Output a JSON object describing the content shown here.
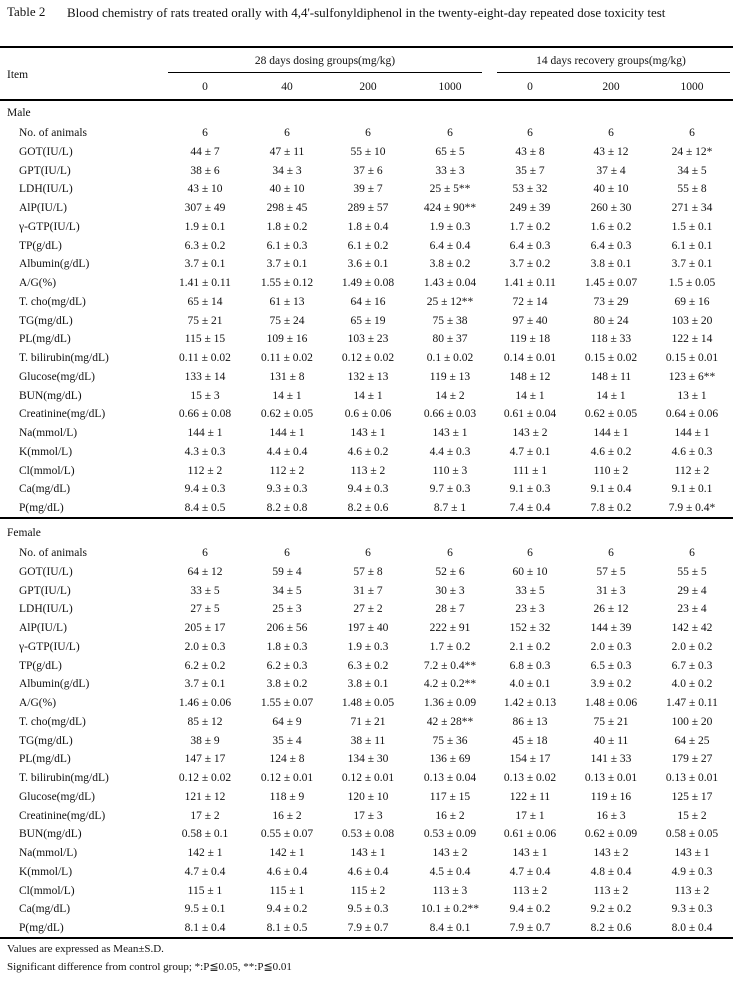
{
  "caption": {
    "label": "Table 2",
    "text": "Blood chemistry of rats treated orally with 4,4'-sulfonyldiphenol in the twenty-eight-day repeated dose toxicity test"
  },
  "header": {
    "item": "Item",
    "group_dosing": "28 days dosing groups(mg/kg)",
    "group_recovery": "14 days recovery groups(mg/kg)",
    "doses": [
      "0",
      "40",
      "200",
      "1000",
      "0",
      "200",
      "1000"
    ]
  },
  "sections": [
    {
      "title": "Male",
      "rows": [
        {
          "item": "No. of animals",
          "values": [
            "6",
            "6",
            "6",
            "6",
            "6",
            "6",
            "6"
          ]
        },
        {
          "item": "GOT(IU/L)",
          "values": [
            "44 ± 7",
            "47 ± 11",
            "55 ± 10",
            "65 ± 5",
            "43 ± 8",
            "43 ± 12",
            "24 ± 12*"
          ]
        },
        {
          "item": "GPT(IU/L)",
          "values": [
            "38 ± 6",
            "34 ± 3",
            "37 ± 6",
            "33 ± 3",
            "35 ± 7",
            "37 ± 4",
            "34 ± 5"
          ]
        },
        {
          "item": "LDH(IU/L)",
          "values": [
            "43 ± 10",
            "40 ± 10",
            "39 ± 7",
            "25 ± 5**",
            "53 ± 32",
            "40 ± 10",
            "55 ± 8"
          ]
        },
        {
          "item": "AlP(IU/L)",
          "values": [
            "307 ± 49",
            "298 ± 45",
            "289 ± 57",
            "424 ± 90**",
            "249 ± 39",
            "260 ± 30",
            "271 ± 34"
          ]
        },
        {
          "item": "γ-GTP(IU/L)",
          "values": [
            "1.9 ± 0.1",
            "1.8 ± 0.2",
            "1.8 ± 0.4",
            "1.9 ± 0.3",
            "1.7 ± 0.2",
            "1.6 ± 0.2",
            "1.5 ± 0.1"
          ]
        },
        {
          "item": "TP(g/dL)",
          "values": [
            "6.3 ± 0.2",
            "6.1 ± 0.3",
            "6.1 ± 0.2",
            "6.4 ± 0.4",
            "6.4 ± 0.3",
            "6.4 ± 0.3",
            "6.1 ± 0.1"
          ]
        },
        {
          "item": "Albumin(g/dL)",
          "values": [
            "3.7 ± 0.1",
            "3.7 ± 0.1",
            "3.6 ± 0.1",
            "3.8 ± 0.2",
            "3.7 ± 0.2",
            "3.8 ± 0.1",
            "3.7 ± 0.1"
          ]
        },
        {
          "item": "A/G(%)",
          "values": [
            "1.41 ± 0.11",
            "1.55 ± 0.12",
            "1.49 ± 0.08",
            "1.43 ± 0.04",
            "1.41 ± 0.11",
            "1.45 ± 0.07",
            "1.5 ± 0.05"
          ]
        },
        {
          "item": "T. cho(mg/dL)",
          "values": [
            "65 ± 14",
            "61 ± 13",
            "64 ± 16",
            "25 ± 12**",
            "72 ± 14",
            "73 ± 29",
            "69 ± 16"
          ]
        },
        {
          "item": "TG(mg/dL)",
          "values": [
            "75 ± 21",
            "75 ± 24",
            "65 ± 19",
            "75 ± 38",
            "97 ± 40",
            "80 ± 24",
            "103 ± 20"
          ]
        },
        {
          "item": "PL(mg/dL)",
          "values": [
            "115 ± 15",
            "109 ± 16",
            "103 ± 23",
            "80 ± 37",
            "119 ± 18",
            "118 ± 33",
            "122 ± 14"
          ]
        },
        {
          "item": "T. bilirubin(mg/dL)",
          "values": [
            "0.11 ± 0.02",
            "0.11 ± 0.02",
            "0.12 ± 0.02",
            "0.1 ± 0.02",
            "0.14 ± 0.01",
            "0.15 ± 0.02",
            "0.15 ± 0.01"
          ]
        },
        {
          "item": "Glucose(mg/dL)",
          "values": [
            "133 ± 14",
            "131 ± 8",
            "132 ± 13",
            "119 ± 13",
            "148 ± 12",
            "148 ± 11",
            "123 ± 6**"
          ]
        },
        {
          "item": "BUN(mg/dL)",
          "values": [
            "15 ± 3",
            "14 ± 1",
            "14 ± 1",
            "14 ± 2",
            "14 ± 1",
            "14 ± 1",
            "13 ± 1"
          ]
        },
        {
          "item": "Creatinine(mg/dL)",
          "values": [
            "0.66 ± 0.08",
            "0.62 ± 0.05",
            "0.6 ± 0.06",
            "0.66 ± 0.03",
            "0.61 ± 0.04",
            "0.62 ± 0.05",
            "0.64 ± 0.06"
          ]
        },
        {
          "item": "Na(mmol/L)",
          "values": [
            "144 ± 1",
            "144 ± 1",
            "143 ± 1",
            "143 ± 1",
            "143 ± 2",
            "144 ± 1",
            "144 ± 1"
          ]
        },
        {
          "item": "K(mmol/L)",
          "values": [
            "4.3 ± 0.3",
            "4.4 ± 0.4",
            "4.6 ± 0.2",
            "4.4 ± 0.3",
            "4.7 ± 0.1",
            "4.6 ± 0.2",
            "4.6 ± 0.3"
          ]
        },
        {
          "item": "Cl(mmol/L)",
          "values": [
            "112 ± 2",
            "112 ± 2",
            "113 ± 2",
            "110 ± 3",
            "111 ± 1",
            "110 ± 2",
            "112 ± 2"
          ]
        },
        {
          "item": "Ca(mg/dL)",
          "values": [
            "9.4 ± 0.3",
            "9.3 ± 0.3",
            "9.4 ± 0.3",
            "9.7 ± 0.3",
            "9.1 ± 0.3",
            "9.1 ± 0.4",
            "9.1 ± 0.1"
          ]
        },
        {
          "item": "P(mg/dL)",
          "values": [
            "8.4 ± 0.5",
            "8.2 ± 0.8",
            "8.2 ± 0.6",
            "8.7 ± 1",
            "7.4 ± 0.4",
            "7.8 ± 0.2",
            "7.9 ± 0.4*"
          ]
        }
      ]
    },
    {
      "title": "Female",
      "rows": [
        {
          "item": "No. of animals",
          "values": [
            "6",
            "6",
            "6",
            "6",
            "6",
            "6",
            "6"
          ]
        },
        {
          "item": "GOT(IU/L)",
          "values": [
            "64 ± 12",
            "59 ± 4",
            "57 ± 8",
            "52 ± 6",
            "60 ± 10",
            "57 ± 5",
            "55 ± 5"
          ]
        },
        {
          "item": "GPT(IU/L)",
          "values": [
            "33 ± 5",
            "34 ± 5",
            "31 ± 7",
            "30 ± 3",
            "33 ± 5",
            "31 ± 3",
            "29 ± 4"
          ]
        },
        {
          "item": "LDH(IU/L)",
          "values": [
            "27 ± 5",
            "25 ± 3",
            "27 ± 2",
            "28 ± 7",
            "23 ± 3",
            "26 ± 12",
            "23 ± 4"
          ]
        },
        {
          "item": "AlP(IU/L)",
          "values": [
            "205 ± 17",
            "206 ± 56",
            "197 ± 40",
            "222 ± 91",
            "152 ± 32",
            "144 ± 39",
            "142 ± 42"
          ]
        },
        {
          "item": "γ-GTP(IU/L)",
          "values": [
            "2.0 ± 0.3",
            "1.8 ± 0.3",
            "1.9 ± 0.3",
            "1.7 ± 0.2",
            "2.1 ± 0.2",
            "2.0 ± 0.3",
            "2.0 ± 0.2"
          ]
        },
        {
          "item": "TP(g/dL)",
          "values": [
            "6.2 ± 0.2",
            "6.2 ± 0.3",
            "6.3 ± 0.2",
            "7.2 ± 0.4**",
            "6.8 ± 0.3",
            "6.5 ± 0.3",
            "6.7 ± 0.3"
          ]
        },
        {
          "item": "Albumin(g/dL)",
          "values": [
            "3.7 ± 0.1",
            "3.8 ± 0.2",
            "3.8 ± 0.1",
            "4.2 ± 0.2**",
            "4.0 ± 0.1",
            "3.9 ± 0.2",
            "4.0 ± 0.2"
          ]
        },
        {
          "item": "A/G(%)",
          "values": [
            "1.46 ± 0.06",
            "1.55 ± 0.07",
            "1.48 ± 0.05",
            "1.36 ± 0.09",
            "1.42 ± 0.13",
            "1.48 ± 0.06",
            "1.47 ± 0.11"
          ]
        },
        {
          "item": "T. cho(mg/dL)",
          "values": [
            "85 ± 12",
            "64 ± 9",
            "71 ± 21",
            "42 ± 28**",
            "86 ± 13",
            "75 ± 21",
            "100 ± 20"
          ]
        },
        {
          "item": "TG(mg/dL)",
          "values": [
            "38 ± 9",
            "35 ± 4",
            "38 ± 11",
            "75 ± 36",
            "45 ± 18",
            "40 ± 11",
            "64 ± 25"
          ]
        },
        {
          "item": "PL(mg/dL)",
          "values": [
            "147 ± 17",
            "124 ± 8",
            "134 ± 30",
            "136 ± 69",
            "154 ± 17",
            "141 ± 33",
            "179 ± 27"
          ]
        },
        {
          "item": "T. bilirubin(mg/dL)",
          "values": [
            "0.12 ± 0.02",
            "0.12 ± 0.01",
            "0.12 ± 0.01",
            "0.13 ± 0.04",
            "0.13 ± 0.02",
            "0.13 ± 0.01",
            "0.13 ± 0.01"
          ]
        },
        {
          "item": "Glucose(mg/dL)",
          "values": [
            "121 ± 12",
            "118 ± 9",
            "120 ± 10",
            "117 ± 15",
            "122 ± 11",
            "119 ± 16",
            "125 ± 17"
          ]
        },
        {
          "item": "Creatinine(mg/dL)",
          "values": [
            "17 ± 2",
            "16 ± 2",
            "17 ± 3",
            "16 ± 2",
            "17 ± 1",
            "16 ± 3",
            "15 ± 2"
          ]
        },
        {
          "item": "BUN(mg/dL)",
          "values": [
            "0.58 ± 0.1",
            "0.55 ± 0.07",
            "0.53 ± 0.08",
            "0.53 ± 0.09",
            "0.61 ± 0.06",
            "0.62 ± 0.09",
            "0.58 ± 0.05"
          ]
        },
        {
          "item": "Na(mmol/L)",
          "values": [
            "142 ± 1",
            "142 ± 1",
            "143 ± 1",
            "143 ± 2",
            "143 ± 1",
            "143 ± 2",
            "143 ± 1"
          ]
        },
        {
          "item": "K(mmol/L)",
          "values": [
            "4.7 ± 0.4",
            "4.6 ± 0.4",
            "4.6 ± 0.4",
            "4.5 ± 0.4",
            "4.7 ± 0.4",
            "4.8 ± 0.4",
            "4.9 ± 0.3"
          ]
        },
        {
          "item": "Cl(mmol/L)",
          "values": [
            "115 ± 1",
            "115 ± 1",
            "115 ± 2",
            "113 ± 3",
            "113 ± 2",
            "113 ± 2",
            "113 ± 2"
          ]
        },
        {
          "item": "Ca(mg/dL)",
          "values": [
            "9.5 ± 0.1",
            "9.4 ± 0.2",
            "9.5 ± 0.3",
            "10.1 ± 0.2**",
            "9.4 ± 0.2",
            "9.2 ± 0.2",
            "9.3 ± 0.3"
          ]
        },
        {
          "item": "P(mg/dL)",
          "values": [
            "8.1 ± 0.4",
            "8.1 ± 0.5",
            "7.9 ± 0.7",
            "8.4 ± 0.1",
            "7.9 ± 0.7",
            "8.2 ± 0.6",
            "8.0 ± 0.4"
          ]
        }
      ]
    }
  ],
  "footnotes": [
    "Values are expressed as Mean±S.D.",
    "Significant difference from control group; *:P≦0.05, **:P≦0.01"
  ]
}
